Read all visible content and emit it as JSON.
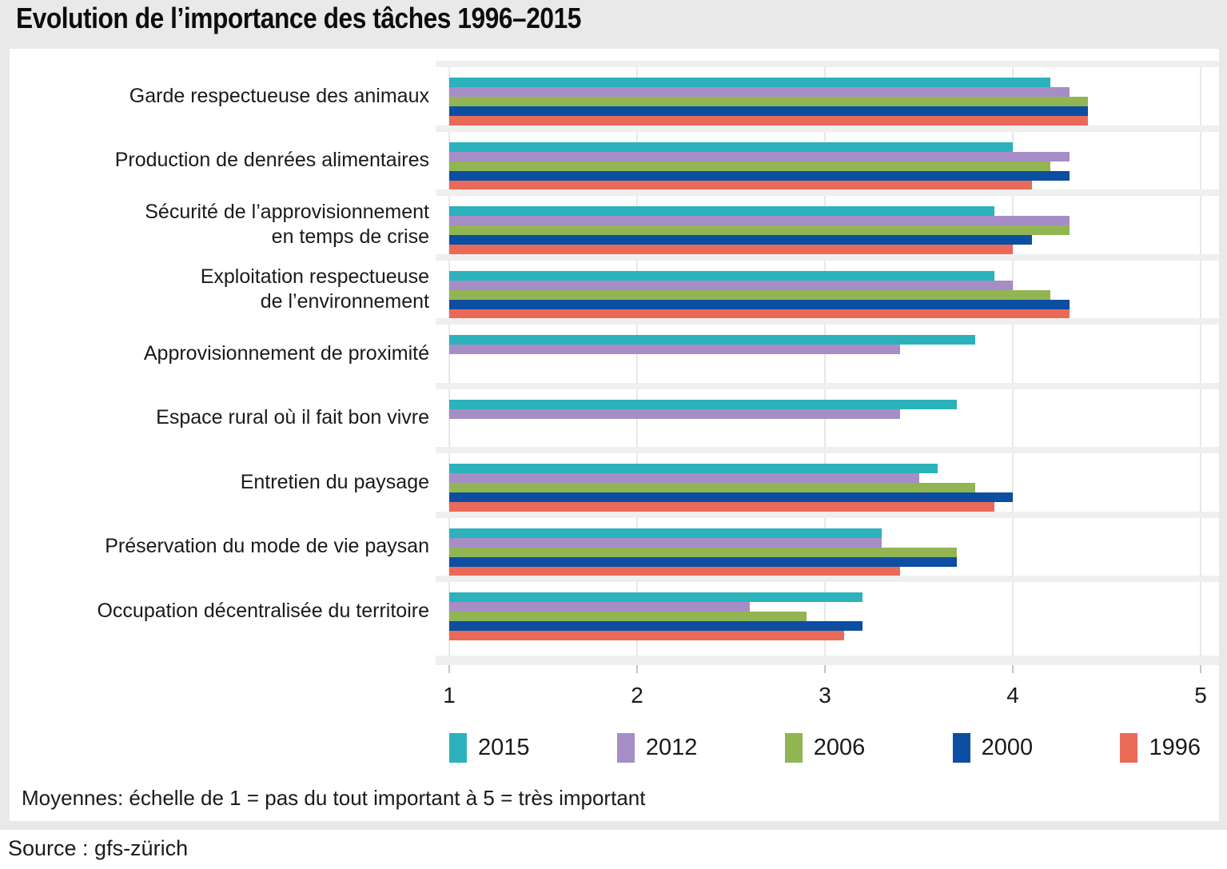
{
  "title": "Evolution de l’importance des tâches 1996–2015",
  "footnote": "Moyennes: échelle de 1 = pas du tout important à 5 = très important",
  "source": "Source : gfs-zürich",
  "colors": {
    "background": "#E9E9E9",
    "panel": "#FFFFFF",
    "separator": "#EFEFEF",
    "gridline": "#E8E8E8",
    "tick": "#C4C4C4",
    "text": "#1A1A1A",
    "series_2015": "#2BB2BA",
    "series_2012": "#A78DC6",
    "series_2006": "#92B553",
    "series_2000": "#0B4EA2",
    "series_1996": "#EA6A58"
  },
  "chart_data": {
    "type": "bar",
    "orientation": "horizontal",
    "title": "Evolution de l’importance des tâches 1996–2015",
    "categories": [
      {
        "label": "Garde respectueuse des animaux",
        "lines": [
          "Garde respectueuse des animaux"
        ]
      },
      {
        "label": "Production de denrées alimentaires",
        "lines": [
          "Production de denrées alimentaires"
        ]
      },
      {
        "label": "Sécurité de l’approvisionnement en temps de crise",
        "lines": [
          "Sécurité de l’approvisionnement",
          "en temps de crise"
        ]
      },
      {
        "label": "Exploitation respectueuse de l’environnement",
        "lines": [
          "Exploitation respectueuse",
          "de l’environnement"
        ]
      },
      {
        "label": "Approvisionnement de proximité",
        "lines": [
          "Approvisionnement de proximité"
        ]
      },
      {
        "label": "Espace rural où il fait bon vivre",
        "lines": [
          "Espace rural où il fait bon vivre"
        ]
      },
      {
        "label": "Entretien du paysage",
        "lines": [
          "Entretien du paysage"
        ]
      },
      {
        "label": "Préservation du mode de vie paysan",
        "lines": [
          "Préservation du mode de vie paysan"
        ]
      },
      {
        "label": "Occupation décentralisée du territoire",
        "lines": [
          "Occupation décentralisée du territoire"
        ]
      }
    ],
    "series": [
      {
        "name": "2015",
        "color": "#2BB2BA",
        "values": [
          4.2,
          4.0,
          3.9,
          3.9,
          3.8,
          3.7,
          3.6,
          3.3,
          3.2
        ]
      },
      {
        "name": "2012",
        "color": "#A78DC6",
        "values": [
          4.3,
          4.3,
          4.3,
          4.0,
          3.4,
          3.4,
          3.5,
          3.3,
          2.6
        ]
      },
      {
        "name": "2006",
        "color": "#92B553",
        "values": [
          4.4,
          4.2,
          4.3,
          4.2,
          null,
          null,
          3.8,
          3.7,
          2.9
        ]
      },
      {
        "name": "2000",
        "color": "#0B4EA2",
        "values": [
          4.4,
          4.3,
          4.1,
          4.3,
          null,
          null,
          4.0,
          3.7,
          3.2
        ]
      },
      {
        "name": "1996",
        "color": "#EA6A58",
        "values": [
          4.4,
          4.1,
          4.0,
          4.3,
          null,
          null,
          3.9,
          3.4,
          3.1
        ]
      }
    ],
    "xlim": [
      1,
      5
    ],
    "x_ticks": [
      "1",
      "2",
      "3",
      "4",
      "5"
    ],
    "grid": "vertical",
    "legend_position": "bottom",
    "value_note": "Moyennes: échelle de 1 = pas du tout important à 5 = très important"
  }
}
